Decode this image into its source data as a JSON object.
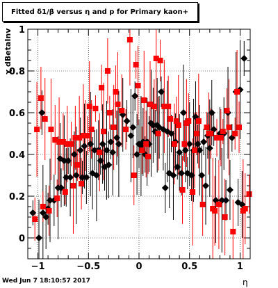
{
  "title": "Fitted δ1/β versus η and p for Primary kaon+",
  "footer": "Wed Jun  7 18:10:57 2017",
  "chart_data": {
    "type": "scatter",
    "xlabel": "η",
    "ylabel": "χ dBetaInv",
    "xlim": [
      -1.1,
      1.1
    ],
    "ylim": [
      -0.1,
      1.0
    ],
    "x_ticks": [
      -1,
      -0.5,
      0,
      0.5,
      1
    ],
    "x_tick_labels": [
      "−1",
      "−0.5",
      "0",
      "0.5",
      "1"
    ],
    "y_ticks": [
      0,
      0.2,
      0.4,
      0.6,
      0.8,
      1
    ],
    "y_tick_labels": [
      "0",
      "0.2",
      "0.4",
      "0.6",
      "0.8",
      "1"
    ],
    "grid": true,
    "series": [
      {
        "color": "#000000",
        "marker": "diamond",
        "points": [
          [
            -1.05,
            0.12
          ],
          [
            -0.99,
            0.0
          ],
          [
            -0.96,
            0.6
          ],
          [
            -0.95,
            0.12
          ],
          [
            -0.92,
            0.1
          ],
          [
            -0.9,
            0.14
          ],
          [
            -0.88,
            0.18
          ],
          [
            -0.84,
            0.18
          ],
          [
            -0.8,
            0.24
          ],
          [
            -0.78,
            0.38
          ],
          [
            -0.77,
            0.24
          ],
          [
            -0.74,
            0.37
          ],
          [
            -0.72,
            0.29
          ],
          [
            -0.7,
            0.37
          ],
          [
            -0.68,
            0.29
          ],
          [
            -0.64,
            0.4
          ],
          [
            -0.62,
            0.3
          ],
          [
            -0.58,
            0.42
          ],
          [
            -0.56,
            0.29
          ],
          [
            -0.54,
            0.44
          ],
          [
            -0.52,
            0.29
          ],
          [
            -0.48,
            0.45
          ],
          [
            -0.46,
            0.31
          ],
          [
            -0.44,
            0.42
          ],
          [
            -0.42,
            0.3
          ],
          [
            -0.4,
            0.42
          ],
          [
            -0.38,
            0.37
          ],
          [
            -0.36,
            0.45
          ],
          [
            -0.34,
            0.34
          ],
          [
            -0.32,
            0.42
          ],
          [
            -0.3,
            0.35
          ],
          [
            -0.28,
            0.46
          ],
          [
            -0.26,
            0.41
          ],
          [
            -0.22,
            0.48
          ],
          [
            -0.2,
            0.45
          ],
          [
            -0.16,
            0.59
          ],
          [
            -0.12,
            0.56
          ],
          [
            -0.08,
            0.49
          ],
          [
            -0.06,
            0.53
          ],
          [
            -0.04,
            0.68
          ],
          [
            -0.02,
            0.4
          ],
          [
            0.0,
            0.45
          ],
          [
            0.02,
            0.44
          ],
          [
            0.04,
            0.46
          ],
          [
            0.06,
            0.4
          ],
          [
            0.08,
            0.46
          ],
          [
            0.1,
            0.45
          ],
          [
            0.12,
            0.55
          ],
          [
            0.14,
            0.54
          ],
          [
            0.16,
            0.51
          ],
          [
            0.18,
            0.54
          ],
          [
            0.2,
            0.53
          ],
          [
            0.22,
            0.7
          ],
          [
            0.24,
            0.52
          ],
          [
            0.26,
            0.24
          ],
          [
            0.28,
            0.51
          ],
          [
            0.3,
            0.31
          ],
          [
            0.32,
            0.5
          ],
          [
            0.34,
            0.3
          ],
          [
            0.36,
            0.46
          ],
          [
            0.38,
            0.34
          ],
          [
            0.4,
            0.41
          ],
          [
            0.42,
            0.31
          ],
          [
            0.44,
            0.6
          ],
          [
            0.46,
            0.42
          ],
          [
            0.48,
            0.31
          ],
          [
            0.5,
            0.45
          ],
          [
            0.52,
            0.3
          ],
          [
            0.54,
            0.42
          ],
          [
            0.56,
            0.58
          ],
          [
            0.58,
            0.45
          ],
          [
            0.6,
            0.42
          ],
          [
            0.62,
            0.3
          ],
          [
            0.64,
            0.46
          ],
          [
            0.66,
            0.25
          ],
          [
            0.68,
            0.49
          ],
          [
            0.7,
            0.43
          ],
          [
            0.72,
            0.6
          ],
          [
            0.74,
            0.52
          ],
          [
            0.76,
            0.18
          ],
          [
            0.8,
            0.5
          ],
          [
            0.82,
            0.18
          ],
          [
            0.84,
            0.5
          ],
          [
            0.86,
            0.18
          ],
          [
            0.88,
            0.6
          ],
          [
            0.9,
            0.23
          ],
          [
            0.92,
            0.48
          ],
          [
            0.96,
            0.7
          ],
          [
            0.98,
            0.17
          ],
          [
            1.0,
            0.71
          ],
          [
            1.02,
            0.16
          ],
          [
            1.04,
            0.86
          ]
        ]
      },
      {
        "color": "#ff0000",
        "marker": "square",
        "points": [
          [
            -1.03,
            0.09
          ],
          [
            -1.01,
            0.52
          ],
          [
            -0.97,
            0.67
          ],
          [
            -0.95,
            0.15
          ],
          [
            -0.93,
            0.57
          ],
          [
            -0.89,
            0.13
          ],
          [
            -0.87,
            0.52
          ],
          [
            -0.83,
            0.47
          ],
          [
            -0.81,
            0.19
          ],
          [
            -0.79,
            0.46
          ],
          [
            -0.75,
            0.46
          ],
          [
            -0.73,
            0.22
          ],
          [
            -0.71,
            0.45
          ],
          [
            -0.67,
            0.45
          ],
          [
            -0.65,
            0.25
          ],
          [
            -0.63,
            0.48
          ],
          [
            -0.61,
            0.35
          ],
          [
            -0.59,
            0.48
          ],
          [
            -0.57,
            0.26
          ],
          [
            -0.55,
            0.49
          ],
          [
            -0.53,
            0.49
          ],
          [
            -0.51,
            0.49
          ],
          [
            -0.49,
            0.63
          ],
          [
            -0.47,
            0.52
          ],
          [
            -0.43,
            0.62
          ],
          [
            -0.39,
            0.41
          ],
          [
            -0.37,
            0.72
          ],
          [
            -0.35,
            0.51
          ],
          [
            -0.31,
            0.8
          ],
          [
            -0.29,
            0.6
          ],
          [
            -0.25,
            0.53
          ],
          [
            -0.23,
            0.7
          ],
          [
            -0.21,
            0.64
          ],
          [
            -0.17,
            0.61
          ],
          [
            -0.13,
            0.52
          ],
          [
            -0.09,
            0.95
          ],
          [
            -0.05,
            0.3
          ],
          [
            -0.03,
            0.83
          ],
          [
            -0.01,
            0.73
          ],
          [
            0.03,
            0.42
          ],
          [
            0.05,
            0.66
          ],
          [
            0.07,
            0.45
          ],
          [
            0.09,
            0.39
          ],
          [
            0.11,
            0.64
          ],
          [
            0.15,
            0.63
          ],
          [
            0.17,
            0.86
          ],
          [
            0.19,
            0.5
          ],
          [
            0.21,
            0.85
          ],
          [
            0.25,
            0.63
          ],
          [
            0.29,
            0.63
          ],
          [
            0.31,
            0.57
          ],
          [
            0.35,
            0.45
          ],
          [
            0.37,
            0.56
          ],
          [
            0.39,
            0.54
          ],
          [
            0.43,
            0.23
          ],
          [
            0.45,
            0.45
          ],
          [
            0.47,
            0.55
          ],
          [
            0.49,
            0.56
          ],
          [
            0.53,
            0.22
          ],
          [
            0.55,
            0.42
          ],
          [
            0.57,
            0.5
          ],
          [
            0.59,
            0.56
          ],
          [
            0.63,
            0.16
          ],
          [
            0.67,
            0.53
          ],
          [
            0.69,
            0.5
          ],
          [
            0.71,
            0.5
          ],
          [
            0.73,
            0.14
          ],
          [
            0.75,
            0.13
          ],
          [
            0.77,
            0.48
          ],
          [
            0.79,
            0.16
          ],
          [
            0.81,
            0.48
          ],
          [
            0.83,
            0.51
          ],
          [
            0.85,
            0.1
          ],
          [
            0.87,
            0.61
          ],
          [
            0.89,
            0.53
          ],
          [
            0.93,
            0.03
          ],
          [
            0.95,
            0.5
          ],
          [
            0.97,
            0.7
          ],
          [
            0.99,
            0.53
          ],
          [
            1.03,
            0.13
          ],
          [
            1.05,
            0.14
          ],
          [
            1.09,
            0.21
          ]
        ]
      }
    ]
  }
}
